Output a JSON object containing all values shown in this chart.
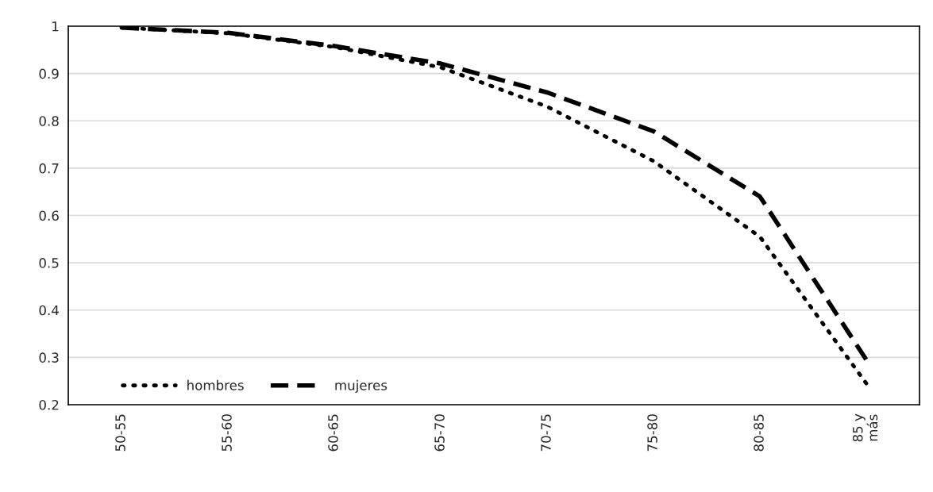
{
  "chart_data": {
    "type": "line",
    "categories": [
      "50-55",
      "55-60",
      "60-65",
      "65-70",
      "70-75",
      "75-80",
      "80-85",
      "85 y\nmás"
    ],
    "series": [
      {
        "name": "hombres",
        "color": "#000000",
        "line_style": "dotted",
        "values": [
          0.997,
          0.985,
          0.956,
          0.913,
          0.83,
          0.715,
          0.555,
          0.245
        ]
      },
      {
        "name": "mujeres",
        "color": "#000000",
        "line_style": "dashed",
        "values": [
          0.997,
          0.986,
          0.958,
          0.921,
          0.86,
          0.778,
          0.64,
          0.295
        ]
      }
    ],
    "ylim": [
      0.2,
      1
    ],
    "yticks": [
      0.2,
      0.3,
      0.4,
      0.5,
      0.6,
      0.7,
      0.8,
      0.9,
      1
    ],
    "grid": "y",
    "legend": "bottom left",
    "marker": "none"
  }
}
